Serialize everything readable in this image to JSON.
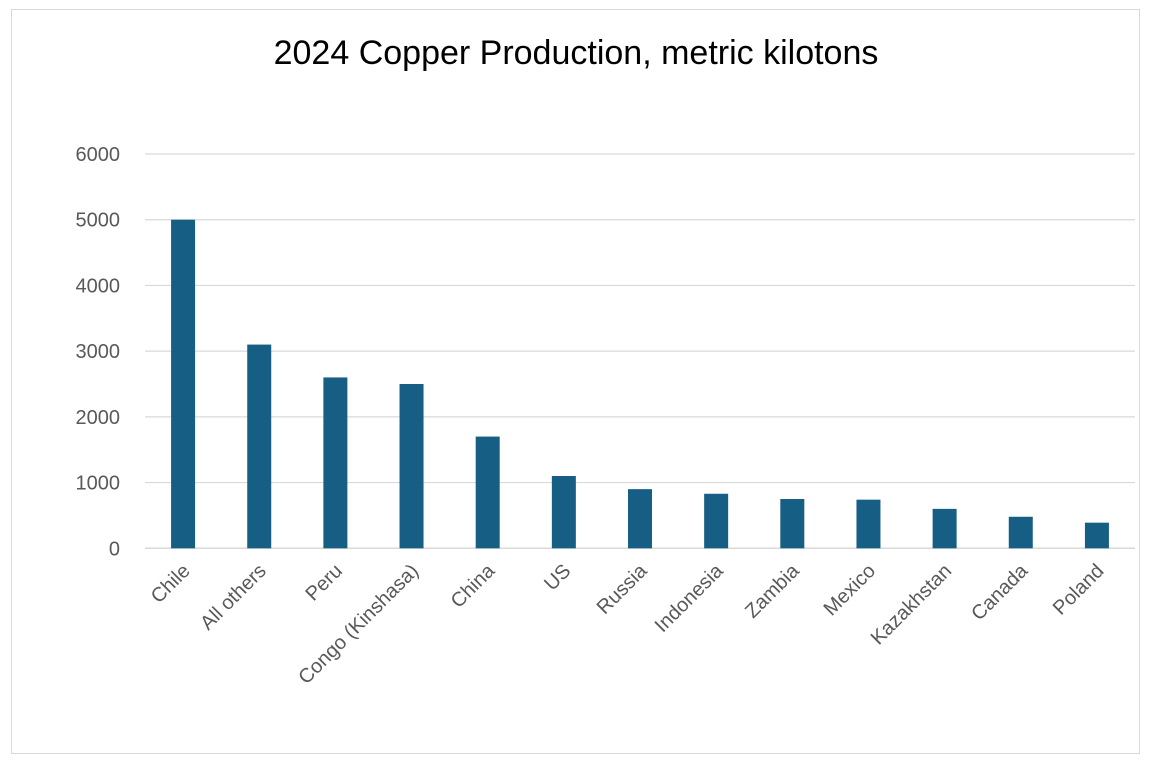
{
  "chart_data": {
    "type": "bar",
    "title": "2024 Copper Production, metric kilotons",
    "categories": [
      "Chile",
      "All others",
      "Peru",
      "Congo (Kinshasa)",
      "China",
      "US",
      "Russia",
      "Indonesia",
      "Zambia",
      "Mexico",
      "Kazakhstan",
      "Canada",
      "Poland"
    ],
    "values": [
      5000,
      3100,
      2600,
      2500,
      1700,
      1100,
      900,
      830,
      750,
      740,
      600,
      480,
      390
    ],
    "ylim": [
      0,
      6000
    ],
    "yticks": [
      "0",
      "1000",
      "2000",
      "3000",
      "4000",
      "5000",
      "6000"
    ],
    "grid": true,
    "legend": "none",
    "bar_color": "#165e83",
    "xlabel": "",
    "ylabel": ""
  }
}
